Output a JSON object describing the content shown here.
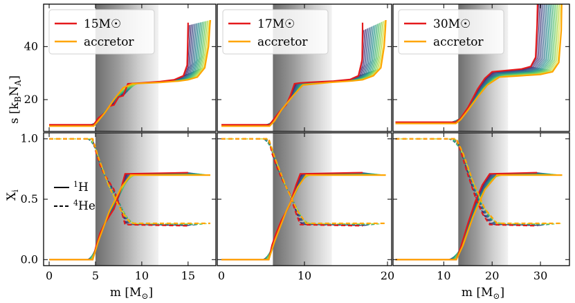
{
  "chart_data": [
    {
      "type": "line",
      "panel": "top-1",
      "ylabel": "s [k_B N_A]",
      "ylim": [
        8,
        56
      ],
      "yticks": [
        20,
        40
      ],
      "xlim": [
        -0.6,
        18
      ],
      "xticks": [],
      "shade_band": [
        5,
        11.8
      ],
      "legend": {
        "position": "top-left",
        "entries": [
          "15M☉",
          "accretor"
        ]
      },
      "series": [
        {
          "name": "15M☉",
          "color": "#e41a1c",
          "x": [
            0,
            4.8,
            5.3,
            6.0,
            6.5,
            7.0,
            7.5,
            8.0,
            8.5,
            10,
            12,
            13.5,
            14.5,
            14.9,
            14.95,
            15.0,
            15.0
          ],
          "y": [
            10.5,
            10.5,
            13,
            15,
            17.5,
            18,
            21,
            21.5,
            26,
            26.3,
            26.8,
            27.5,
            29,
            33,
            40,
            48,
            49
          ]
        },
        {
          "name": "accretor",
          "color": "#ffa500",
          "x": [
            0,
            4.8,
            5.3,
            6.0,
            7.0,
            8.0,
            9.0,
            12,
            14,
            15,
            16,
            16.8,
            17.2,
            17.35,
            17.4
          ],
          "y": [
            10,
            10,
            12,
            15,
            20,
            24.5,
            26,
            26.5,
            27,
            27.5,
            28.5,
            32,
            40,
            48,
            50
          ]
        }
      ]
    },
    {
      "type": "line",
      "panel": "top-2",
      "ylim": [
        8,
        56
      ],
      "yticks": [
        20,
        40
      ],
      "xlim": [
        -0.5,
        20.5
      ],
      "xticks": [],
      "shade_band": [
        6.2,
        13.3
      ],
      "legend": {
        "position": "top-left",
        "entries": [
          "17M☉",
          "accretor"
        ]
      },
      "series": [
        {
          "name": "17M☉",
          "color": "#e41a1c",
          "x": [
            0,
            5.8,
            6.4,
            7.0,
            7.8,
            8.3,
            8.8,
            9.5,
            11,
            13.5,
            15.5,
            16.5,
            16.95,
            17.0,
            17.0
          ],
          "y": [
            10.5,
            10.5,
            13,
            15.5,
            18,
            21.5,
            26,
            26.3,
            26.6,
            27,
            27.6,
            29,
            35,
            46,
            49
          ]
        },
        {
          "name": "accretor",
          "color": "#ffa500",
          "x": [
            0,
            5.8,
            6.4,
            7.2,
            8.5,
            9.8,
            13,
            15.5,
            17,
            18.3,
            19.2,
            19.6,
            19.75,
            19.8
          ],
          "y": [
            10,
            10,
            12,
            16,
            21,
            25.5,
            26.5,
            27,
            27.5,
            29,
            32,
            40,
            47,
            50
          ]
        }
      ]
    },
    {
      "type": "line",
      "panel": "top-3",
      "ylim": [
        8,
        56
      ],
      "yticks": [
        20,
        40
      ],
      "xlim": [
        -0.5,
        36
      ],
      "xticks": [],
      "shade_band": [
        13,
        23.3
      ],
      "legend": {
        "position": "top-left",
        "entries": [
          "30M☉",
          "accretor"
        ]
      },
      "series": [
        {
          "name": "30M☉",
          "color": "#e41a1c",
          "x": [
            0,
            12.5,
            13.5,
            15,
            17,
            18.5,
            20,
            23,
            26,
            28,
            29,
            29.3,
            29.4
          ],
          "y": [
            11.5,
            11.5,
            13,
            17,
            24,
            28,
            30.5,
            31,
            31.5,
            32.5,
            36,
            48,
            56
          ]
        },
        {
          "name": "accretor",
          "color": "#ffa500",
          "x": [
            0,
            12.5,
            13.5,
            15,
            17,
            19,
            21.5,
            26,
            30,
            32.5,
            33.8,
            34.3,
            34.4
          ],
          "y": [
            11,
            11,
            12.5,
            16,
            21,
            25.5,
            28.5,
            29,
            29.5,
            30.5,
            34,
            46,
            56
          ]
        }
      ]
    },
    {
      "type": "line",
      "panel": "bottom-1",
      "ylabel": "X_i",
      "ylim": [
        -0.05,
        1.05
      ],
      "yticks": [
        0.0,
        0.5,
        1.0
      ],
      "ytick_labels": [
        "0.0",
        "0.5",
        "1.0"
      ],
      "xlabel": "m [M☉]",
      "xlim": [
        -0.6,
        18
      ],
      "xticks": [
        0,
        5,
        10,
        15
      ],
      "xtick_labels": [
        "0",
        "5",
        "10",
        "15"
      ],
      "shade_band": [
        5,
        11.8
      ],
      "legend": {
        "position": "center-left",
        "entries": [
          "1H",
          "4He"
        ]
      },
      "series": [
        {
          "name": "15M☉ 1H",
          "color": "#e41a1c",
          "x": [
            0,
            4.7,
            5.1,
            5.5,
            6.0,
            7.0,
            7.8,
            8.2,
            15.0
          ],
          "y": [
            0.0,
            0.0,
            0.12,
            0.22,
            0.3,
            0.42,
            0.6,
            0.71,
            0.72
          ]
        },
        {
          "name": "15M☉ 4He",
          "color": "#e41a1c",
          "dash": true,
          "x": [
            0,
            4.7,
            5.1,
            5.5,
            6.0,
            7.0,
            7.8,
            8.2,
            15.0
          ],
          "y": [
            1.0,
            1.0,
            0.88,
            0.78,
            0.7,
            0.58,
            0.4,
            0.29,
            0.28
          ]
        },
        {
          "name": "accretor 1H",
          "color": "#ffa500",
          "x": [
            0,
            4.7,
            5.3,
            6.5,
            7.8,
            8.8,
            17.4
          ],
          "y": [
            0.0,
            0.0,
            0.15,
            0.4,
            0.6,
            0.7,
            0.7
          ]
        },
        {
          "name": "accretor 4He",
          "color": "#ffa500",
          "dash": true,
          "x": [
            0,
            4.7,
            5.3,
            6.5,
            7.8,
            8.8,
            17.4
          ],
          "y": [
            1.0,
            1.0,
            0.85,
            0.6,
            0.4,
            0.3,
            0.3
          ]
        }
      ]
    },
    {
      "type": "line",
      "panel": "bottom-2",
      "ylim": [
        -0.05,
        1.05
      ],
      "yticks": [
        0.0,
        0.5,
        1.0
      ],
      "xlabel": "",
      "xlim": [
        -0.5,
        20.5
      ],
      "xticks": [
        10,
        20
      ],
      "xtick_labels": [
        "10",
        "20"
      ],
      "shade_band": [
        6.2,
        13.3
      ],
      "series": [
        {
          "name": "17M☉ 1H",
          "color": "#e41a1c",
          "x": [
            0,
            5.7,
            6.1,
            6.6,
            7.2,
            8.2,
            9.0,
            9.5,
            17.0
          ],
          "y": [
            0.0,
            0.0,
            0.12,
            0.22,
            0.32,
            0.45,
            0.62,
            0.71,
            0.72
          ]
        },
        {
          "name": "17M☉ 4He",
          "color": "#e41a1c",
          "dash": true,
          "x": [
            0,
            5.7,
            6.1,
            6.6,
            7.2,
            8.2,
            9.0,
            9.5,
            17.0
          ],
          "y": [
            1.0,
            1.0,
            0.88,
            0.78,
            0.68,
            0.55,
            0.38,
            0.29,
            0.28
          ]
        },
        {
          "name": "accretor 1H",
          "color": "#ffa500",
          "x": [
            0,
            5.7,
            6.4,
            7.8,
            9.2,
            10.2,
            19.8
          ],
          "y": [
            0.0,
            0.0,
            0.15,
            0.4,
            0.6,
            0.7,
            0.7
          ]
        },
        {
          "name": "accretor 4He",
          "color": "#ffa500",
          "dash": true,
          "x": [
            0,
            5.7,
            6.4,
            7.8,
            9.2,
            10.2,
            19.8
          ],
          "y": [
            1.0,
            1.0,
            0.85,
            0.6,
            0.4,
            0.3,
            0.3
          ]
        }
      ]
    },
    {
      "type": "line",
      "panel": "bottom-3",
      "ylim": [
        -0.05,
        1.05
      ],
      "yticks": [
        0.0,
        0.5,
        1.0
      ],
      "xlabel": "m [M☉]",
      "xlim": [
        -0.5,
        36
      ],
      "xticks": [
        10,
        20,
        30
      ],
      "xtick_labels": [
        "10",
        "20",
        "30"
      ],
      "shade_band": [
        13,
        23.3
      ],
      "series": [
        {
          "name": "30M☉ 1H",
          "color": "#e41a1c",
          "x": [
            0,
            12.6,
            13.5,
            15.0,
            16.5,
            18.0,
            19.5,
            29.3
          ],
          "y": [
            0.0,
            0.0,
            0.1,
            0.3,
            0.48,
            0.62,
            0.71,
            0.72
          ]
        },
        {
          "name": "30M☉ 4He",
          "color": "#e41a1c",
          "dash": true,
          "x": [
            0,
            12.6,
            13.5,
            15.0,
            16.5,
            18.0,
            19.5,
            29.3
          ],
          "y": [
            1.0,
            1.0,
            0.9,
            0.7,
            0.52,
            0.38,
            0.29,
            0.28
          ]
        },
        {
          "name": "accretor 1H",
          "color": "#ffa500",
          "x": [
            0,
            12.6,
            14.0,
            16.0,
            18.5,
            21.0,
            34.5
          ],
          "y": [
            0.0,
            0.0,
            0.12,
            0.35,
            0.58,
            0.7,
            0.7
          ]
        },
        {
          "name": "accretor 4He",
          "color": "#ffa500",
          "dash": true,
          "x": [
            0,
            12.6,
            14.0,
            16.0,
            18.5,
            21.0,
            34.5
          ],
          "y": [
            1.0,
            1.0,
            0.88,
            0.65,
            0.42,
            0.3,
            0.3
          ]
        }
      ]
    }
  ],
  "labels": {
    "ylabel_top": "s [k",
    "ylabel_top_sub_b": "B",
    "ylabel_top_mid": "N",
    "ylabel_top_sub_a": "A",
    "ylabel_top_end": "]",
    "ylabel_bottom": "X",
    "ylabel_bottom_sub": "i",
    "xlabel_1": "m [M",
    "xlabel_1_sub": "⊙",
    "xlabel_1_end": "]",
    "xlabel_3": "m [M",
    "xlabel_3_sub": "⊙",
    "xlabel_3_end": "]",
    "legend_iso_h_sup": "1",
    "legend_iso_h": "H",
    "legend_iso_he_sup": "4",
    "legend_iso_he": "He"
  }
}
